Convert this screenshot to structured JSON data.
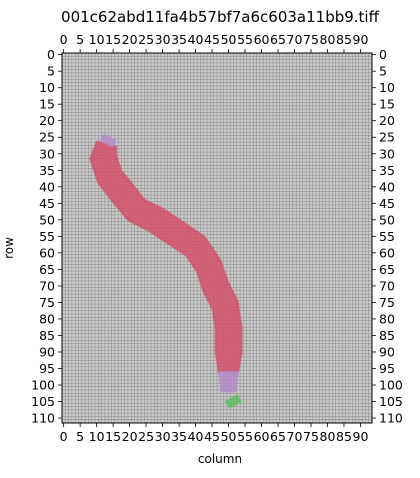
{
  "chart_data": {
    "type": "heatmap",
    "title": "001c62abd11fa4b57bf7a6c603a11bb9.tiff",
    "xlabel": "column",
    "ylabel": "row",
    "xlim": [
      0,
      93
    ],
    "ylim": [
      111,
      0
    ],
    "xticks": [
      0,
      5,
      10,
      15,
      20,
      25,
      30,
      35,
      40,
      45,
      50,
      55,
      60,
      65,
      70,
      75,
      80,
      85,
      90
    ],
    "yticks": [
      0,
      5,
      10,
      15,
      20,
      25,
      30,
      35,
      40,
      45,
      50,
      55,
      60,
      65,
      70,
      75,
      80,
      85,
      90,
      95,
      100,
      105,
      110
    ],
    "xtick_labels": [
      "0",
      "5",
      "10",
      "15",
      "20",
      "25",
      "30",
      "35",
      "40",
      "45",
      "50",
      "55",
      "60",
      "65",
      "70",
      "75",
      "80",
      "85",
      "90"
    ],
    "ytick_labels": [
      "0",
      "5",
      "10",
      "15",
      "20",
      "25",
      "30",
      "35",
      "40",
      "45",
      "50",
      "55",
      "60",
      "65",
      "70",
      "75",
      "80",
      "85",
      "90",
      "95",
      "100",
      "105",
      "110"
    ],
    "xticks_top": true,
    "yticks_right": true,
    "grid": true,
    "grid_step": 1,
    "background_color": "#c8c8c8",
    "grid_color": "#8a8a8a",
    "regions": [
      {
        "color": "#d2506a",
        "label": "",
        "centerline": [
          [
            13,
            27
          ],
          [
            12,
            31
          ],
          [
            14,
            37
          ],
          [
            18,
            42
          ],
          [
            22,
            47
          ],
          [
            28,
            50
          ],
          [
            34,
            54
          ],
          [
            40,
            58
          ],
          [
            44,
            64
          ],
          [
            46,
            70
          ],
          [
            49,
            76
          ],
          [
            50,
            83
          ],
          [
            50,
            90
          ],
          [
            50,
            96
          ]
        ],
        "width": [
          3,
          4,
          4,
          4,
          4,
          4,
          4,
          4,
          4,
          4,
          4,
          4,
          4,
          3
        ]
      },
      {
        "color": "#b48cc8",
        "label": "",
        "centerline": [
          [
            14,
            25
          ],
          [
            13,
            27
          ]
        ],
        "width": [
          2,
          2
        ]
      },
      {
        "color": "#b48cc8",
        "label": "",
        "centerline": [
          [
            50,
            96
          ],
          [
            50,
            102
          ]
        ],
        "width": [
          3,
          2
        ]
      },
      {
        "color": "#5fbf5f",
        "label": "",
        "centerline": [
          [
            51,
            104
          ],
          [
            52,
            106
          ]
        ],
        "width": [
          2,
          2
        ]
      }
    ]
  }
}
